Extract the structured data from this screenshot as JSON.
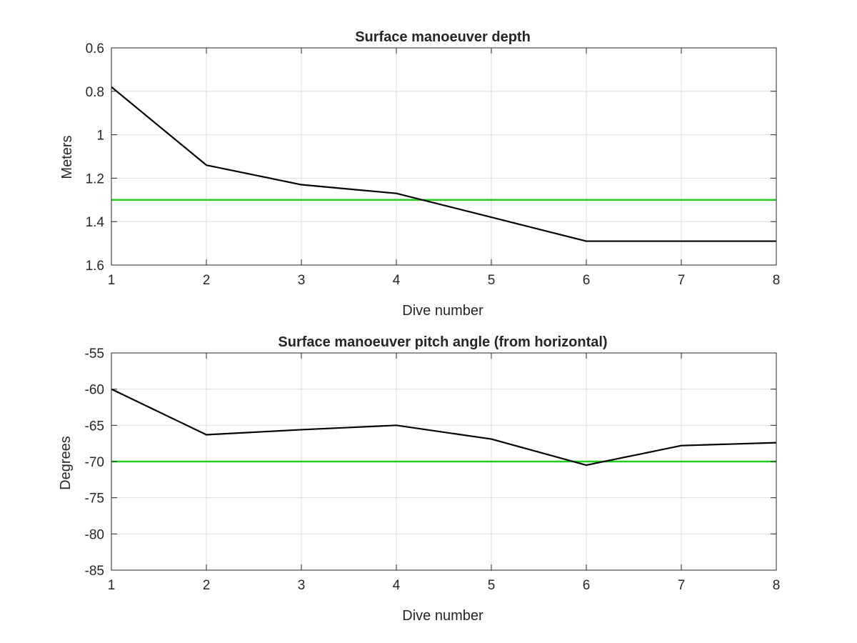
{
  "chart_data": [
    {
      "type": "line",
      "title": "Surface manoeuver depth",
      "xlabel": "Dive number",
      "ylabel": "Meters",
      "x": [
        1,
        2,
        3,
        4,
        5,
        6,
        7,
        8
      ],
      "xlim": [
        1,
        8
      ],
      "ylim": [
        0.6,
        1.6
      ],
      "y_reversed": true,
      "xticks": [
        "1",
        "2",
        "3",
        "4",
        "5",
        "6",
        "7",
        "8"
      ],
      "yticks": [
        "0.6",
        "0.8",
        "1",
        "1.2",
        "1.4",
        "1.6"
      ],
      "grid": true,
      "series": [
        {
          "values": [
            0.78,
            1.14,
            1.23,
            1.27,
            1.38,
            1.49,
            1.49,
            1.49
          ],
          "color": "#000000"
        }
      ],
      "reference_line": {
        "y": 1.3,
        "color": "#22cc22"
      }
    },
    {
      "type": "line",
      "title": "Surface manoeuver pitch angle (from horizontal)",
      "xlabel": "Dive number",
      "ylabel": "Degrees",
      "x": [
        1,
        2,
        3,
        4,
        5,
        6,
        7,
        8
      ],
      "xlim": [
        1,
        8
      ],
      "ylim": [
        -85,
        -55
      ],
      "y_reversed": false,
      "xticks": [
        "1",
        "2",
        "3",
        "4",
        "5",
        "6",
        "7",
        "8"
      ],
      "yticks": [
        "-55",
        "-60",
        "-65",
        "-70",
        "-75",
        "-80",
        "-85"
      ],
      "grid": true,
      "series": [
        {
          "values": [
            -60,
            -66.3,
            -65.6,
            -65,
            -66.9,
            -70.5,
            -67.8,
            -67.4
          ],
          "color": "#000000"
        }
      ],
      "reference_line": {
        "y": -70,
        "color": "#22cc22"
      }
    }
  ]
}
